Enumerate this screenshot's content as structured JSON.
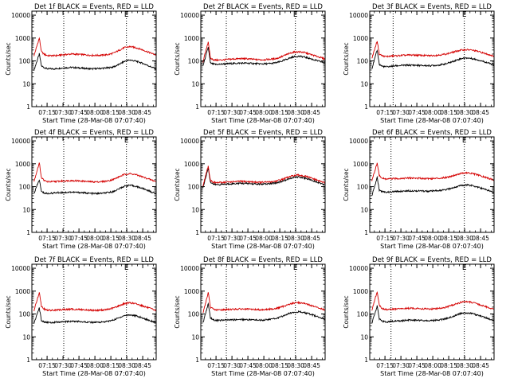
{
  "page": {
    "background": "#ffffff"
  },
  "style": {
    "events_color": "#000000",
    "lld_color": "#d40000",
    "axis_color": "#000000"
  },
  "shared": {
    "xlabel": "Start Time (28-Mar-08 07:07:40)",
    "ylabel": "Counts/sec",
    "xticks": [
      "07:15",
      "07:30",
      "07:45",
      "08:00",
      "08:15",
      "08:30",
      "08:45"
    ],
    "yticks": [
      "1",
      "10",
      "100",
      "1000",
      "10000"
    ],
    "marker": "E"
  },
  "chart_data": [
    {
      "type": "line",
      "title": "Det 1f BLACK = Events, RED = LLD",
      "x_minutes": [
        -5,
        0,
        2,
        5,
        8,
        12,
        15,
        20,
        25,
        30,
        35,
        40,
        45,
        50,
        55,
        60,
        65,
        70,
        75,
        80,
        85,
        90,
        95,
        100,
        105,
        110
      ],
      "vlines": [
        23,
        82
      ],
      "marker_at": 82,
      "ylim": [
        1,
        15000
      ],
      "y_log": true,
      "xlim": [
        -7,
        110
      ],
      "series": [
        {
          "name": "Events",
          "values": [
            40,
            200,
            60,
            50,
            45,
            45,
            45,
            48,
            50,
            52,
            50,
            48,
            46,
            45,
            46,
            48,
            50,
            55,
            70,
            95,
            110,
            100,
            85,
            70,
            55,
            45
          ]
        },
        {
          "name": "LLD",
          "values": [
            170,
            1000,
            250,
            190,
            170,
            170,
            170,
            180,
            190,
            200,
            195,
            190,
            180,
            175,
            175,
            180,
            190,
            220,
            290,
            380,
            420,
            390,
            330,
            270,
            220,
            180
          ]
        }
      ]
    },
    {
      "type": "line",
      "title": "Det 2f BLACK = Events, RED = LLD",
      "x_minutes": [
        -5,
        0,
        2,
        5,
        8,
        12,
        15,
        20,
        25,
        30,
        35,
        40,
        45,
        50,
        55,
        60,
        65,
        70,
        75,
        80,
        85,
        90,
        95,
        100,
        105,
        110
      ],
      "vlines": [
        17,
        82
      ],
      "marker_at": 82,
      "ylim": [
        1,
        15000
      ],
      "y_log": true,
      "xlim": [
        -7,
        110
      ],
      "series": [
        {
          "name": "Events",
          "values": [
            60,
            400,
            80,
            72,
            70,
            72,
            74,
            76,
            78,
            80,
            80,
            78,
            76,
            74,
            75,
            78,
            85,
            100,
            125,
            150,
            160,
            150,
            130,
            110,
            95,
            80
          ]
        },
        {
          "name": "LLD",
          "values": [
            90,
            700,
            130,
            112,
            108,
            110,
            112,
            118,
            122,
            125,
            125,
            120,
            115,
            112,
            115,
            120,
            130,
            160,
            200,
            240,
            250,
            235,
            200,
            170,
            145,
            120
          ]
        }
      ]
    },
    {
      "type": "line",
      "title": "Det 3f BLACK = Events, RED = LLD",
      "x_minutes": [
        -5,
        0,
        2,
        5,
        8,
        12,
        15,
        20,
        25,
        30,
        35,
        40,
        45,
        50,
        55,
        60,
        65,
        70,
        75,
        80,
        85,
        90,
        95,
        100,
        105,
        110
      ],
      "vlines": [
        15,
        82
      ],
      "marker_at": 82,
      "ylim": [
        1,
        15000
      ],
      "y_log": true,
      "xlim": [
        -7,
        110
      ],
      "series": [
        {
          "name": "Events",
          "values": [
            45,
            300,
            70,
            58,
            55,
            57,
            60,
            62,
            64,
            65,
            65,
            63,
            62,
            62,
            64,
            68,
            75,
            90,
            110,
            130,
            135,
            125,
            110,
            95,
            80,
            65
          ]
        },
        {
          "name": "LLD",
          "values": [
            130,
            750,
            200,
            165,
            155,
            160,
            165,
            170,
            175,
            180,
            180,
            175,
            172,
            170,
            175,
            185,
            200,
            230,
            270,
            300,
            310,
            290,
            260,
            220,
            190,
            160
          ]
        }
      ]
    },
    {
      "type": "line",
      "title": "Det 4f BLACK = Events, RED = LLD",
      "x_minutes": [
        -5,
        0,
        2,
        5,
        8,
        12,
        15,
        20,
        25,
        30,
        35,
        40,
        45,
        50,
        55,
        60,
        65,
        70,
        75,
        80,
        85,
        90,
        95,
        100,
        105,
        110
      ],
      "vlines": [
        23,
        82
      ],
      "marker_at": 82,
      "ylim": [
        1,
        15000
      ],
      "y_log": true,
      "xlim": [
        -7,
        110
      ],
      "series": [
        {
          "name": "Events",
          "values": [
            50,
            200,
            60,
            52,
            50,
            52,
            54,
            55,
            56,
            58,
            56,
            55,
            52,
            50,
            50,
            52,
            55,
            62,
            80,
            105,
            115,
            105,
            90,
            75,
            60,
            48
          ]
        },
        {
          "name": "LLD",
          "values": [
            170,
            1100,
            250,
            180,
            165,
            165,
            168,
            175,
            180,
            185,
            180,
            175,
            168,
            162,
            162,
            168,
            180,
            210,
            270,
            340,
            370,
            340,
            290,
            240,
            200,
            165
          ]
        }
      ]
    },
    {
      "type": "line",
      "title": "Det 5f BLACK = Events, RED = LLD",
      "x_minutes": [
        -5,
        0,
        2,
        5,
        8,
        12,
        15,
        20,
        25,
        30,
        35,
        40,
        45,
        50,
        55,
        60,
        65,
        70,
        75,
        80,
        85,
        90,
        95,
        100,
        105,
        110
      ],
      "vlines": [
        17,
        82
      ],
      "marker_at": 82,
      "ylim": [
        1,
        15000
      ],
      "y_log": true,
      "xlim": [
        -7,
        110
      ],
      "series": [
        {
          "name": "Events",
          "values": [
            90,
            650,
            160,
            128,
            122,
            125,
            128,
            132,
            136,
            140,
            138,
            134,
            130,
            128,
            130,
            138,
            150,
            175,
            210,
            250,
            265,
            245,
            210,
            175,
            145,
            120
          ]
        },
        {
          "name": "LLD",
          "values": [
            110,
            800,
            190,
            155,
            148,
            152,
            156,
            160,
            165,
            170,
            168,
            162,
            158,
            155,
            158,
            165,
            180,
            210,
            255,
            300,
            320,
            295,
            255,
            210,
            175,
            145
          ]
        }
      ]
    },
    {
      "type": "line",
      "title": "Det 6f BLACK = Events, RED = LLD",
      "x_minutes": [
        -5,
        0,
        2,
        5,
        8,
        12,
        15,
        20,
        25,
        30,
        35,
        40,
        45,
        50,
        55,
        60,
        65,
        70,
        75,
        80,
        85,
        90,
        95,
        100,
        105,
        110
      ],
      "vlines": [
        13,
        82
      ],
      "marker_at": 82,
      "ylim": [
        1,
        15000
      ],
      "y_log": true,
      "xlim": [
        -7,
        110
      ],
      "series": [
        {
          "name": "Events",
          "values": [
            40,
            250,
            70,
            60,
            57,
            58,
            60,
            62,
            64,
            66,
            66,
            65,
            64,
            63,
            65,
            68,
            74,
            85,
            100,
            115,
            120,
            110,
            95,
            80,
            68,
            55
          ]
        },
        {
          "name": "LLD",
          "values": [
            180,
            1100,
            300,
            230,
            215,
            218,
            222,
            228,
            232,
            238,
            235,
            232,
            228,
            225,
            228,
            238,
            255,
            290,
            340,
            390,
            400,
            370,
            320,
            270,
            230,
            195
          ]
        }
      ]
    },
    {
      "type": "line",
      "title": "Det 7f BLACK = Events, RED = LLD",
      "x_minutes": [
        -5,
        0,
        2,
        5,
        8,
        12,
        15,
        20,
        25,
        30,
        35,
        40,
        45,
        50,
        55,
        60,
        65,
        70,
        75,
        80,
        85,
        90,
        95,
        100,
        105,
        110
      ],
      "vlines": [
        23,
        82
      ],
      "marker_at": 82,
      "ylim": [
        1,
        15000
      ],
      "y_log": true,
      "xlim": [
        -7,
        110
      ],
      "series": [
        {
          "name": "Events",
          "values": [
            40,
            180,
            52,
            45,
            42,
            43,
            44,
            45,
            46,
            48,
            47,
            46,
            44,
            43,
            43,
            45,
            48,
            55,
            68,
            85,
            92,
            85,
            72,
            60,
            50,
            42
          ]
        },
        {
          "name": "LLD",
          "values": [
            140,
            900,
            220,
            160,
            145,
            145,
            148,
            152,
            158,
            162,
            160,
            155,
            150,
            145,
            145,
            150,
            160,
            185,
            230,
            285,
            310,
            285,
            245,
            205,
            170,
            140
          ]
        }
      ]
    },
    {
      "type": "line",
      "title": "Det 8f BLACK = Events, RED = LLD",
      "x_minutes": [
        -5,
        0,
        2,
        5,
        8,
        12,
        15,
        20,
        25,
        30,
        35,
        40,
        45,
        50,
        55,
        60,
        65,
        70,
        75,
        80,
        85,
        90,
        95,
        100,
        105,
        110
      ],
      "vlines": [
        17,
        82
      ],
      "marker_at": 82,
      "ylim": [
        1,
        15000
      ],
      "y_log": true,
      "xlim": [
        -7,
        110
      ],
      "series": [
        {
          "name": "Events",
          "values": [
            40,
            280,
            70,
            55,
            52,
            53,
            54,
            55,
            56,
            58,
            57,
            56,
            55,
            54,
            56,
            60,
            66,
            80,
            100,
            120,
            125,
            115,
            100,
            85,
            70,
            58
          ]
        },
        {
          "name": "LLD",
          "values": [
            110,
            850,
            200,
            160,
            150,
            152,
            155,
            158,
            162,
            165,
            163,
            160,
            156,
            154,
            158,
            165,
            180,
            210,
            255,
            300,
            315,
            290,
            250,
            210,
            175,
            150
          ]
        }
      ]
    },
    {
      "type": "line",
      "title": "Det 9f BLACK = Events, RED = LLD",
      "x_minutes": [
        -5,
        0,
        2,
        5,
        8,
        12,
        15,
        20,
        25,
        30,
        35,
        40,
        45,
        50,
        55,
        60,
        65,
        70,
        75,
        80,
        85,
        90,
        95,
        100,
        105,
        110
      ],
      "vlines": [
        13,
        82
      ],
      "marker_at": 82,
      "ylim": [
        1,
        15000
      ],
      "y_log": true,
      "xlim": [
        -7,
        110
      ],
      "series": [
        {
          "name": "Events",
          "values": [
            40,
            220,
            60,
            48,
            45,
            46,
            48,
            50,
            52,
            54,
            54,
            53,
            52,
            51,
            53,
            57,
            63,
            75,
            92,
            108,
            112,
            102,
            88,
            74,
            62,
            50
          ]
        },
        {
          "name": "LLD",
          "values": [
            150,
            950,
            230,
            170,
            158,
            160,
            162,
            168,
            172,
            178,
            176,
            172,
            168,
            165,
            170,
            180,
            198,
            235,
            285,
            335,
            345,
            315,
            270,
            225,
            190,
            160
          ]
        }
      ]
    }
  ]
}
